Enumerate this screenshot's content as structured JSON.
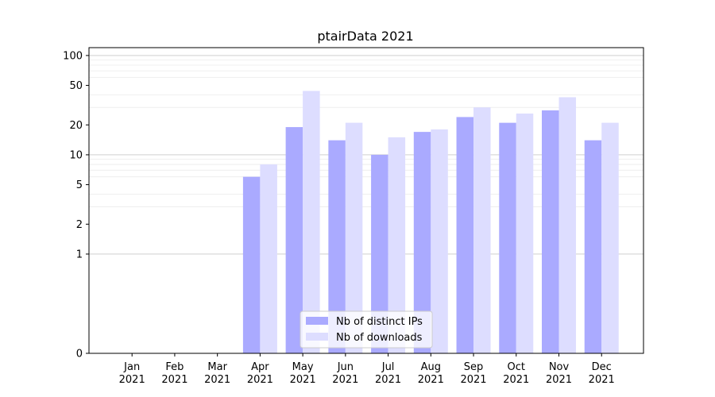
{
  "chart_data": {
    "type": "bar",
    "title": "ptairData 2021",
    "xlabel": "",
    "ylabel": "",
    "y_scale": "symlog",
    "ylim": [
      0,
      120
    ],
    "yticks": [
      0,
      1,
      2,
      5,
      10,
      20,
      50,
      100
    ],
    "ytick_labels": [
      "0",
      "1",
      "2",
      "5",
      "10",
      "20",
      "50",
      "100"
    ],
    "grid": true,
    "legend_position": "bottom-center",
    "categories": [
      "Jan 2021",
      "Feb 2021",
      "Mar 2021",
      "Apr 2021",
      "May 2021",
      "Jun 2021",
      "Jul 2021",
      "Aug 2021",
      "Sep 2021",
      "Oct 2021",
      "Nov 2021",
      "Dec 2021"
    ],
    "category_lines": [
      [
        "Jan",
        "2021"
      ],
      [
        "Feb",
        "2021"
      ],
      [
        "Mar",
        "2021"
      ],
      [
        "Apr",
        "2021"
      ],
      [
        "May",
        "2021"
      ],
      [
        "Jun",
        "2021"
      ],
      [
        "Jul",
        "2021"
      ],
      [
        "Aug",
        "2021"
      ],
      [
        "Sep",
        "2021"
      ],
      [
        "Oct",
        "2021"
      ],
      [
        "Nov",
        "2021"
      ],
      [
        "Dec",
        "2021"
      ]
    ],
    "series": [
      {
        "name": "Nb of distinct IPs",
        "color": "#aaaaff",
        "values": [
          0,
          0,
          0,
          6,
          19,
          14,
          10,
          17,
          24,
          21,
          28,
          14
        ]
      },
      {
        "name": "Nb of downloads",
        "color": "#ddddff",
        "values": [
          0,
          0,
          0,
          8,
          44,
          21,
          15,
          18,
          30,
          26,
          38,
          21
        ]
      }
    ]
  }
}
